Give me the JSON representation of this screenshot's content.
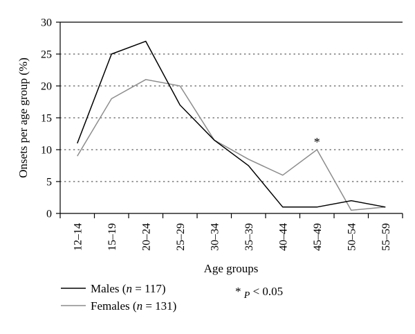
{
  "chart_data": {
    "type": "line",
    "title": "",
    "xlabel": "Age groups",
    "ylabel": "Onsets per age group (%)",
    "ylim": [
      0,
      30
    ],
    "yticks": [
      "0",
      "5",
      "10",
      "15",
      "20",
      "25",
      "30"
    ],
    "grid": "horizontal dotted",
    "categories": [
      "12–14",
      "15–19",
      "20–24",
      "25–29",
      "30–34",
      "35–39",
      "40–44",
      "45–49",
      "50–54",
      "55–59"
    ],
    "series": [
      {
        "name_parts": [
          "Males (",
          "n",
          " = 117)"
        ],
        "color": "#000000",
        "values": [
          11,
          25,
          27,
          17,
          11.5,
          7.5,
          1,
          1,
          2,
          1
        ]
      },
      {
        "name_parts": [
          "Females (",
          "n",
          " = 131)"
        ],
        "color": "#8c8c8c",
        "values": [
          9,
          18,
          21,
          20,
          11.5,
          8.5,
          6,
          10,
          0.5,
          1
        ]
      }
    ],
    "annotation": {
      "text": "*",
      "category": "45–49",
      "value": 10
    },
    "footnote": {
      "star": "*",
      "p": "P",
      "rest": " < 0.05"
    },
    "legend_position": "bottom-left"
  }
}
